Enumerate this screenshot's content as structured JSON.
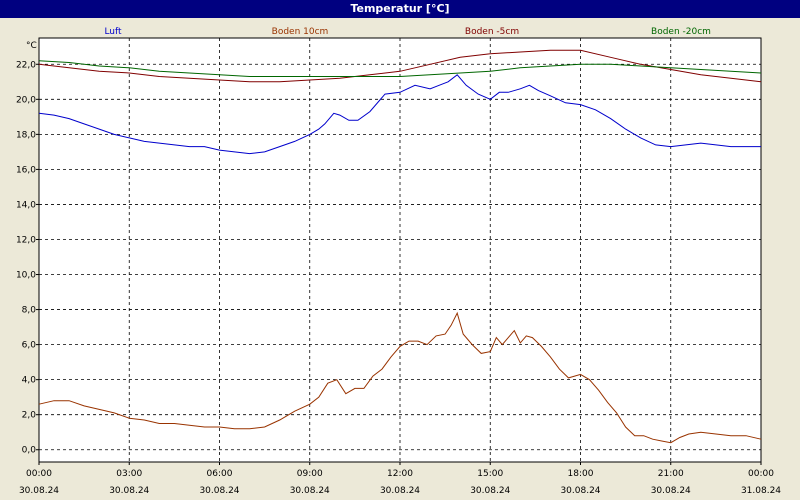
{
  "window": {
    "title": "Temperatur [°C]"
  },
  "chart_data": {
    "type": "line",
    "title": "Temperatur [°C]",
    "ylabel": "°C",
    "xlabel": "",
    "ylim": [
      -0.7,
      23.5
    ],
    "xlim": [
      0,
      24
    ],
    "grid": true,
    "legend": "top",
    "y_ticks": [
      "0,0",
      "2,0",
      "4,0",
      "6,0",
      "8,0",
      "10,0",
      "12,0",
      "14,0",
      "16,0",
      "18,0",
      "20,0",
      "22,0"
    ],
    "x_ticks": [
      {
        "time": "00:00",
        "date": "30.08.24"
      },
      {
        "time": "03:00",
        "date": "30.08.24"
      },
      {
        "time": "06:00",
        "date": "30.08.24"
      },
      {
        "time": "09:00",
        "date": "30.08.24"
      },
      {
        "time": "12:00",
        "date": "30.08.24"
      },
      {
        "time": "15:00",
        "date": "30.08.24"
      },
      {
        "time": "18:00",
        "date": "30.08.24"
      },
      {
        "time": "21:00",
        "date": "30.08.24"
      },
      {
        "time": "00:00",
        "date": "31.08.24"
      }
    ],
    "series": [
      {
        "name": "Luft",
        "color": "#0000cc",
        "x": [
          0,
          0.5,
          1,
          1.5,
          2,
          2.5,
          3,
          3.5,
          4,
          4.5,
          5,
          5.5,
          6,
          6.5,
          7,
          7.5,
          8,
          8.5,
          9,
          9.3,
          9.5,
          9.8,
          10,
          10.3,
          10.6,
          11,
          11.5,
          12,
          12.5,
          13,
          13.3,
          13.6,
          13.9,
          14.2,
          14.6,
          15,
          15.3,
          15.6,
          16,
          16.3,
          16.6,
          17,
          17.5,
          18,
          18.5,
          19,
          19.5,
          20,
          20.5,
          21,
          21.5,
          22,
          22.5,
          23,
          24
        ],
        "values": [
          19.2,
          19.1,
          18.9,
          18.6,
          18.3,
          18.0,
          17.8,
          17.6,
          17.5,
          17.4,
          17.3,
          17.3,
          17.1,
          17.0,
          16.9,
          17.0,
          17.3,
          17.6,
          18.0,
          18.3,
          18.6,
          19.2,
          19.1,
          18.8,
          18.8,
          19.3,
          20.3,
          20.4,
          20.8,
          20.6,
          20.8,
          21.0,
          21.4,
          20.8,
          20.3,
          20.0,
          20.4,
          20.4,
          20.6,
          20.8,
          20.5,
          20.2,
          19.8,
          19.7,
          19.4,
          18.9,
          18.3,
          17.8,
          17.4,
          17.3,
          17.4,
          17.5,
          17.4,
          17.3,
          17.3
        ]
      },
      {
        "name": "Boden 10cm",
        "color": "#993300",
        "x": [
          0,
          0.5,
          1,
          1.5,
          2,
          2.5,
          3,
          3.5,
          4,
          4.5,
          5,
          5.5,
          6,
          6.5,
          7,
          7.5,
          8,
          8.5,
          9,
          9.3,
          9.6,
          9.9,
          10.2,
          10.5,
          10.8,
          11.1,
          11.4,
          11.7,
          12,
          12.3,
          12.6,
          12.9,
          13.2,
          13.5,
          13.7,
          13.9,
          14.1,
          14.4,
          14.7,
          15,
          15.2,
          15.4,
          15.6,
          15.8,
          16,
          16.2,
          16.4,
          16.7,
          17,
          17.3,
          17.6,
          18,
          18.3,
          18.6,
          18.9,
          19.2,
          19.5,
          19.8,
          20.1,
          20.4,
          20.7,
          21,
          21.3,
          21.6,
          22,
          22.5,
          23,
          23.5,
          24
        ],
        "values": [
          2.6,
          2.8,
          2.8,
          2.5,
          2.3,
          2.1,
          1.8,
          1.7,
          1.5,
          1.5,
          1.4,
          1.3,
          1.3,
          1.2,
          1.2,
          1.3,
          1.7,
          2.2,
          2.6,
          3.0,
          3.8,
          4.0,
          3.2,
          3.5,
          3.5,
          4.2,
          4.6,
          5.3,
          5.9,
          6.2,
          6.2,
          6.0,
          6.5,
          6.6,
          7.1,
          7.8,
          6.6,
          6.0,
          5.5,
          5.6,
          6.4,
          6.0,
          6.4,
          6.8,
          6.1,
          6.5,
          6.4,
          5.9,
          5.3,
          4.6,
          4.1,
          4.3,
          4.0,
          3.4,
          2.7,
          2.1,
          1.3,
          0.8,
          0.8,
          0.6,
          0.5,
          0.4,
          0.7,
          0.9,
          1.0,
          0.9,
          0.8,
          0.8,
          0.6
        ]
      },
      {
        "name": "Boden -5cm",
        "color": "#800000",
        "x": [
          0,
          1,
          2,
          3,
          4,
          5,
          6,
          7,
          8,
          9,
          10,
          11,
          12,
          13,
          14,
          15,
          16,
          17,
          18,
          19,
          20,
          21,
          22,
          23,
          24
        ],
        "values": [
          22.0,
          21.8,
          21.6,
          21.5,
          21.3,
          21.2,
          21.1,
          21.0,
          21.0,
          21.1,
          21.2,
          21.4,
          21.6,
          22.0,
          22.4,
          22.6,
          22.7,
          22.8,
          22.8,
          22.4,
          22.0,
          21.7,
          21.4,
          21.2,
          21.0
        ]
      },
      {
        "name": "Boden -20cm",
        "color": "#006600",
        "x": [
          0,
          1,
          2,
          3,
          4,
          5,
          6,
          7,
          8,
          9,
          10,
          11,
          12,
          13,
          14,
          15,
          16,
          17,
          18,
          19,
          20,
          21,
          22,
          23,
          24
        ],
        "values": [
          22.2,
          22.1,
          21.9,
          21.8,
          21.6,
          21.5,
          21.4,
          21.3,
          21.3,
          21.3,
          21.3,
          21.3,
          21.3,
          21.4,
          21.5,
          21.6,
          21.8,
          21.9,
          22.0,
          22.0,
          21.9,
          21.8,
          21.7,
          21.6,
          21.5
        ]
      }
    ]
  }
}
